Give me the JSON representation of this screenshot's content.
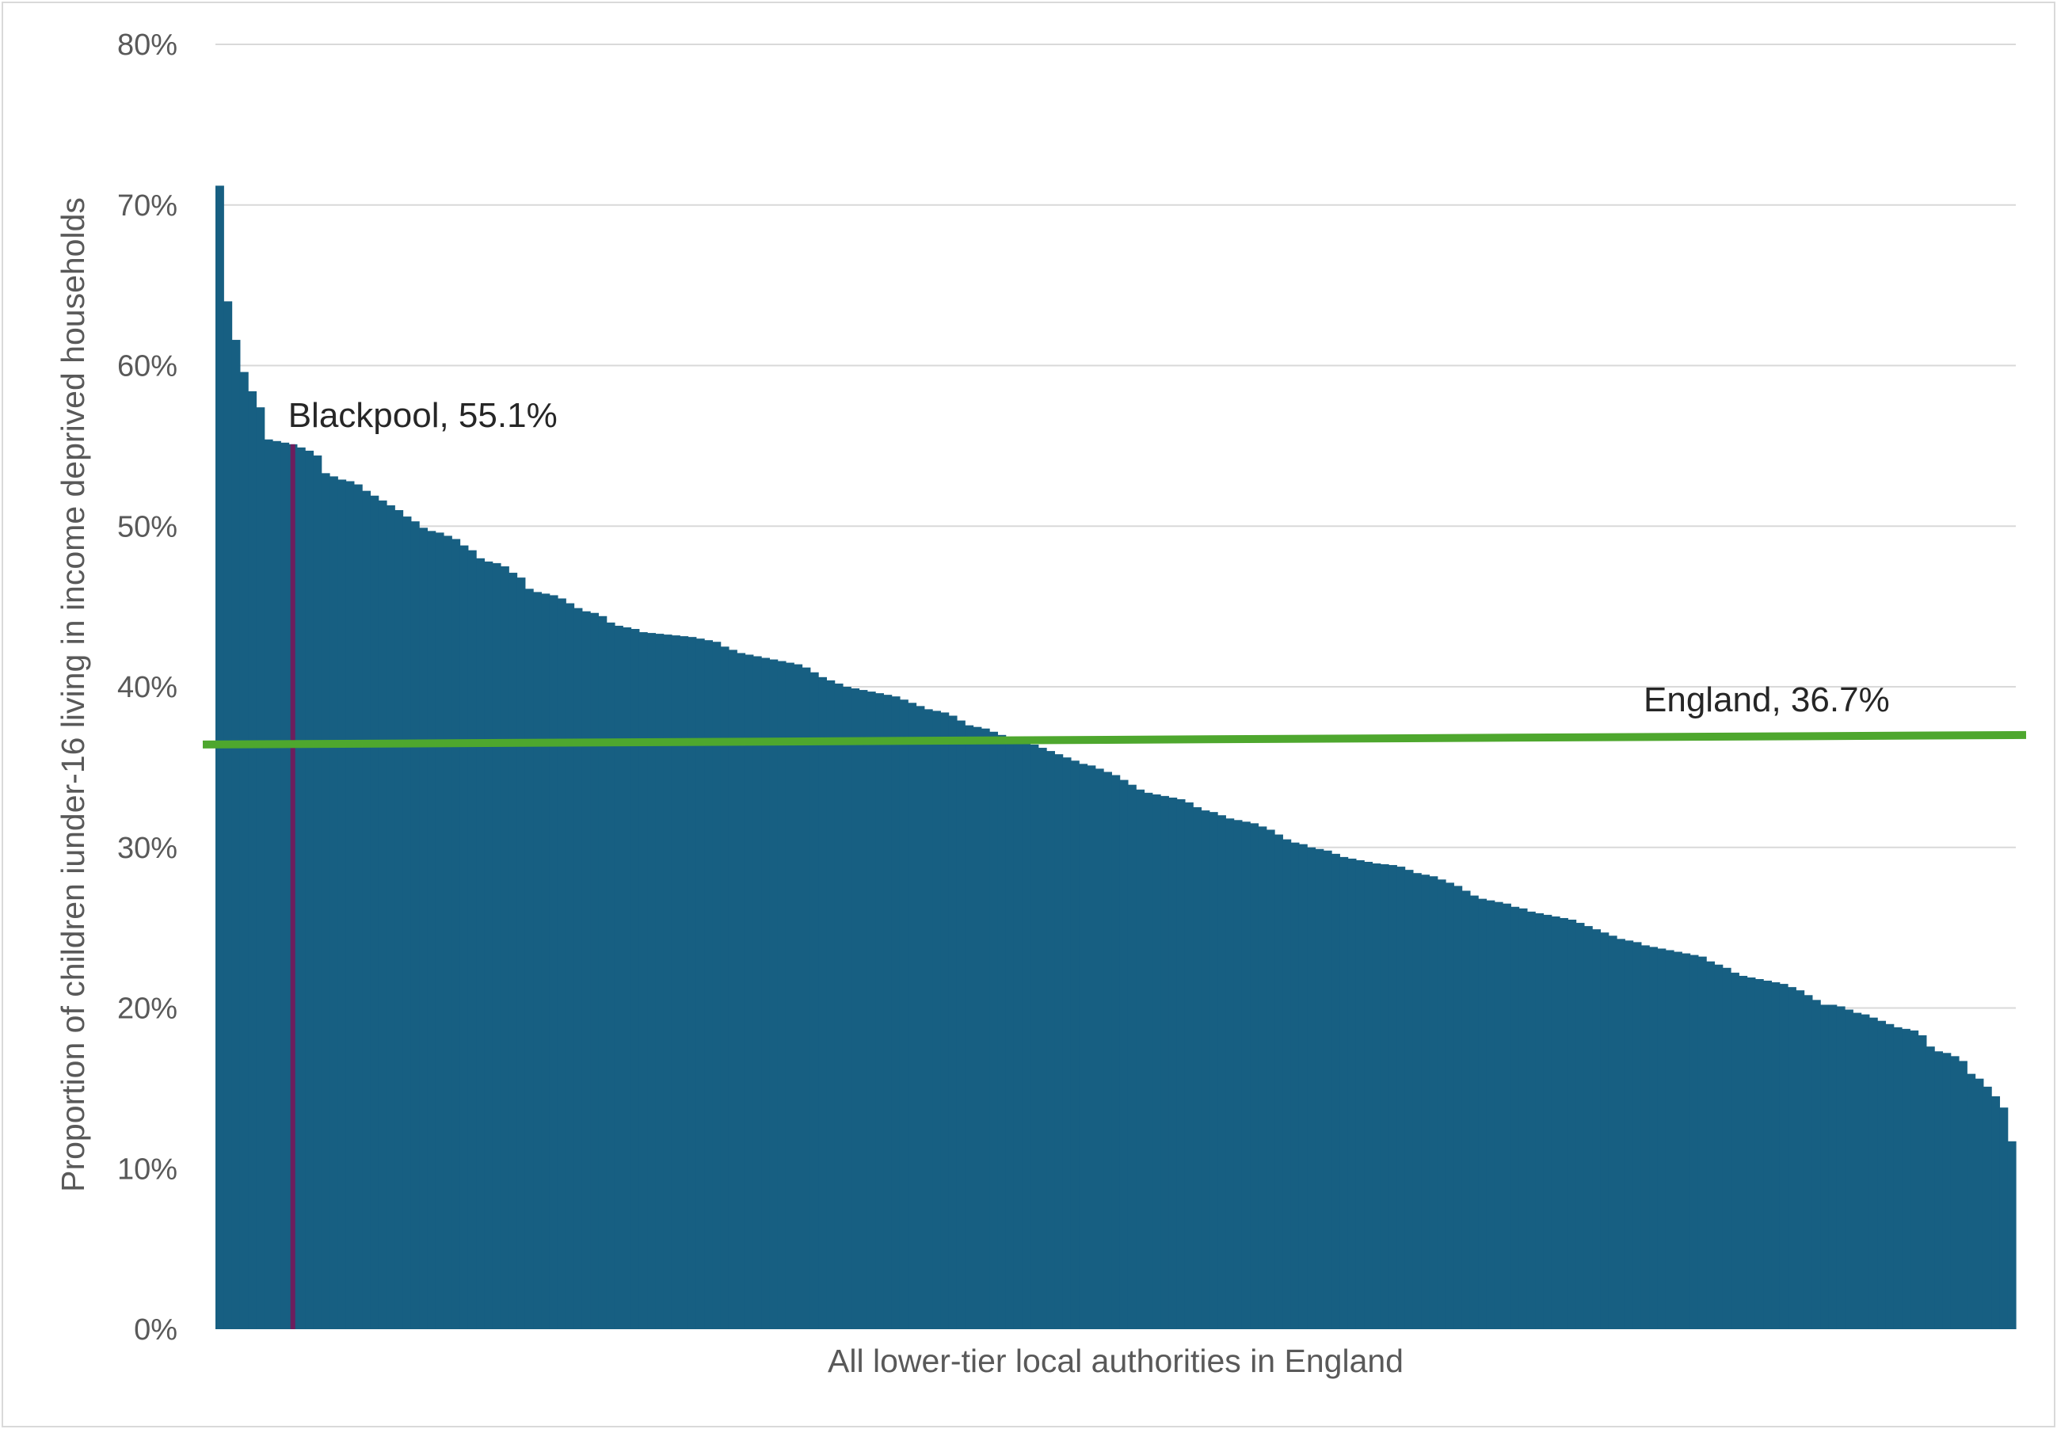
{
  "chart_data": {
    "type": "bar",
    "xlabel": "All lower-tier local authorities in England",
    "ylabel": "Proportion of children iunder-16 living in income deprived households",
    "ylim": [
      0,
      80
    ],
    "yticks": [
      "0%",
      "10%",
      "20%",
      "30%",
      "40%",
      "50%",
      "60%",
      "70%",
      "80%"
    ],
    "grid": true,
    "legend": "none",
    "colors": {
      "bars": "#175f82",
      "england_line": "#4ea72e",
      "highlight": "#6d1e5d",
      "grid": "#d9d9d9"
    },
    "series": [
      {
        "values": [
          71.2,
          64.0,
          61.6,
          59.6,
          58.4,
          57.4,
          55.4,
          55.3,
          55.2,
          55.1,
          54.9,
          54.7,
          54.4,
          53.3,
          53.1,
          52.9,
          52.8,
          52.6,
          52.2,
          51.9,
          51.6,
          51.3,
          51.0,
          50.6,
          50.3,
          49.9,
          49.7,
          49.6,
          49.4,
          49.2,
          48.8,
          48.5,
          48.0,
          47.8,
          47.7,
          47.5,
          47.1,
          46.8,
          46.1,
          45.9,
          45.8,
          45.7,
          45.5,
          45.2,
          44.9,
          44.7,
          44.6,
          44.4,
          44.0,
          43.8,
          43.7,
          43.6,
          43.4,
          43.35,
          43.3,
          43.25,
          43.2,
          43.15,
          43.1,
          43.0,
          42.9,
          42.8,
          42.5,
          42.3,
          42.1,
          42.0,
          41.9,
          41.8,
          41.7,
          41.6,
          41.5,
          41.4,
          41.2,
          40.9,
          40.6,
          40.4,
          40.2,
          40.0,
          39.9,
          39.8,
          39.7,
          39.6,
          39.5,
          39.4,
          39.2,
          39.0,
          38.8,
          38.6,
          38.5,
          38.4,
          38.2,
          37.9,
          37.6,
          37.5,
          37.4,
          37.2,
          37.0,
          36.8,
          36.7,
          36.6,
          36.4,
          36.2,
          36.0,
          35.8,
          35.6,
          35.4,
          35.2,
          35.1,
          34.9,
          34.7,
          34.5,
          34.2,
          33.9,
          33.6,
          33.4,
          33.3,
          33.2,
          33.1,
          33.0,
          32.8,
          32.5,
          32.3,
          32.2,
          32.0,
          31.8,
          31.7,
          31.6,
          31.5,
          31.3,
          31.1,
          30.8,
          30.5,
          30.3,
          30.2,
          30.0,
          29.9,
          29.8,
          29.6,
          29.4,
          29.3,
          29.2,
          29.1,
          29.0,
          28.95,
          28.9,
          28.8,
          28.6,
          28.4,
          28.3,
          28.2,
          28.0,
          27.8,
          27.6,
          27.3,
          27.0,
          26.8,
          26.7,
          26.6,
          26.5,
          26.3,
          26.2,
          26.0,
          25.9,
          25.8,
          25.7,
          25.6,
          25.5,
          25.3,
          25.1,
          24.9,
          24.7,
          24.5,
          24.3,
          24.2,
          24.1,
          23.9,
          23.8,
          23.7,
          23.6,
          23.5,
          23.4,
          23.3,
          23.2,
          22.9,
          22.7,
          22.5,
          22.2,
          22.0,
          21.9,
          21.8,
          21.7,
          21.6,
          21.5,
          21.3,
          21.1,
          20.8,
          20.5,
          20.2,
          20.2,
          20.1,
          19.9,
          19.7,
          19.6,
          19.4,
          19.2,
          19.0,
          18.8,
          18.7,
          18.6,
          18.3,
          17.6,
          17.3,
          17.2,
          17.0,
          16.7,
          15.9,
          15.6,
          15.1,
          14.5,
          13.8,
          11.7
        ]
      }
    ],
    "highlight": {
      "label": "Blackpool, 55.1%",
      "value": 55.1,
      "index": 9
    },
    "reference_line": {
      "label": "England, 36.7%",
      "value": 36.7
    }
  }
}
